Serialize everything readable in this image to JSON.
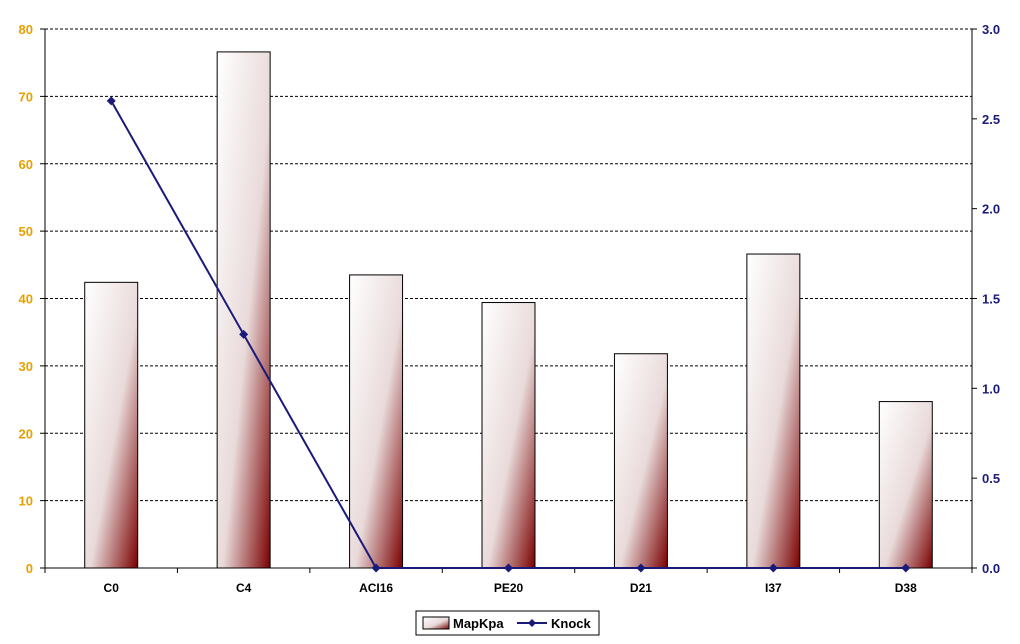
{
  "chart_data": {
    "type": "bar",
    "categories": [
      "C0",
      "C4",
      "ACI16",
      "PE20",
      "D21",
      "I37",
      "D38"
    ],
    "series": [
      {
        "name": "MapKpa",
        "type": "bar",
        "axis": "left",
        "values": [
          42.4,
          76.6,
          43.5,
          39.4,
          31.8,
          46.6,
          24.7
        ]
      },
      {
        "name": "Knock",
        "type": "line",
        "axis": "right",
        "values": [
          2.6,
          1.3,
          0.0,
          0.0,
          0.0,
          0.0,
          0.0
        ]
      }
    ],
    "ylim_left": [
      0,
      80
    ],
    "ylim_right": [
      0,
      3.0
    ],
    "yticks_left": [
      "0",
      "10",
      "20",
      "30",
      "40",
      "50",
      "60",
      "70",
      "80"
    ],
    "yticks_right": [
      "0.0",
      "0.5",
      "1.0",
      "1.5",
      "2.0",
      "2.5",
      "3.0"
    ],
    "grid": "horizontal-dashed",
    "legend_position": "bottom-center",
    "colors": {
      "bar_light": "#ffffff",
      "bar_dark": "#7a0000",
      "line": "#1a1a7a",
      "left_axis_text": "#e8a000",
      "right_axis_text": "#1a1a7a"
    }
  }
}
